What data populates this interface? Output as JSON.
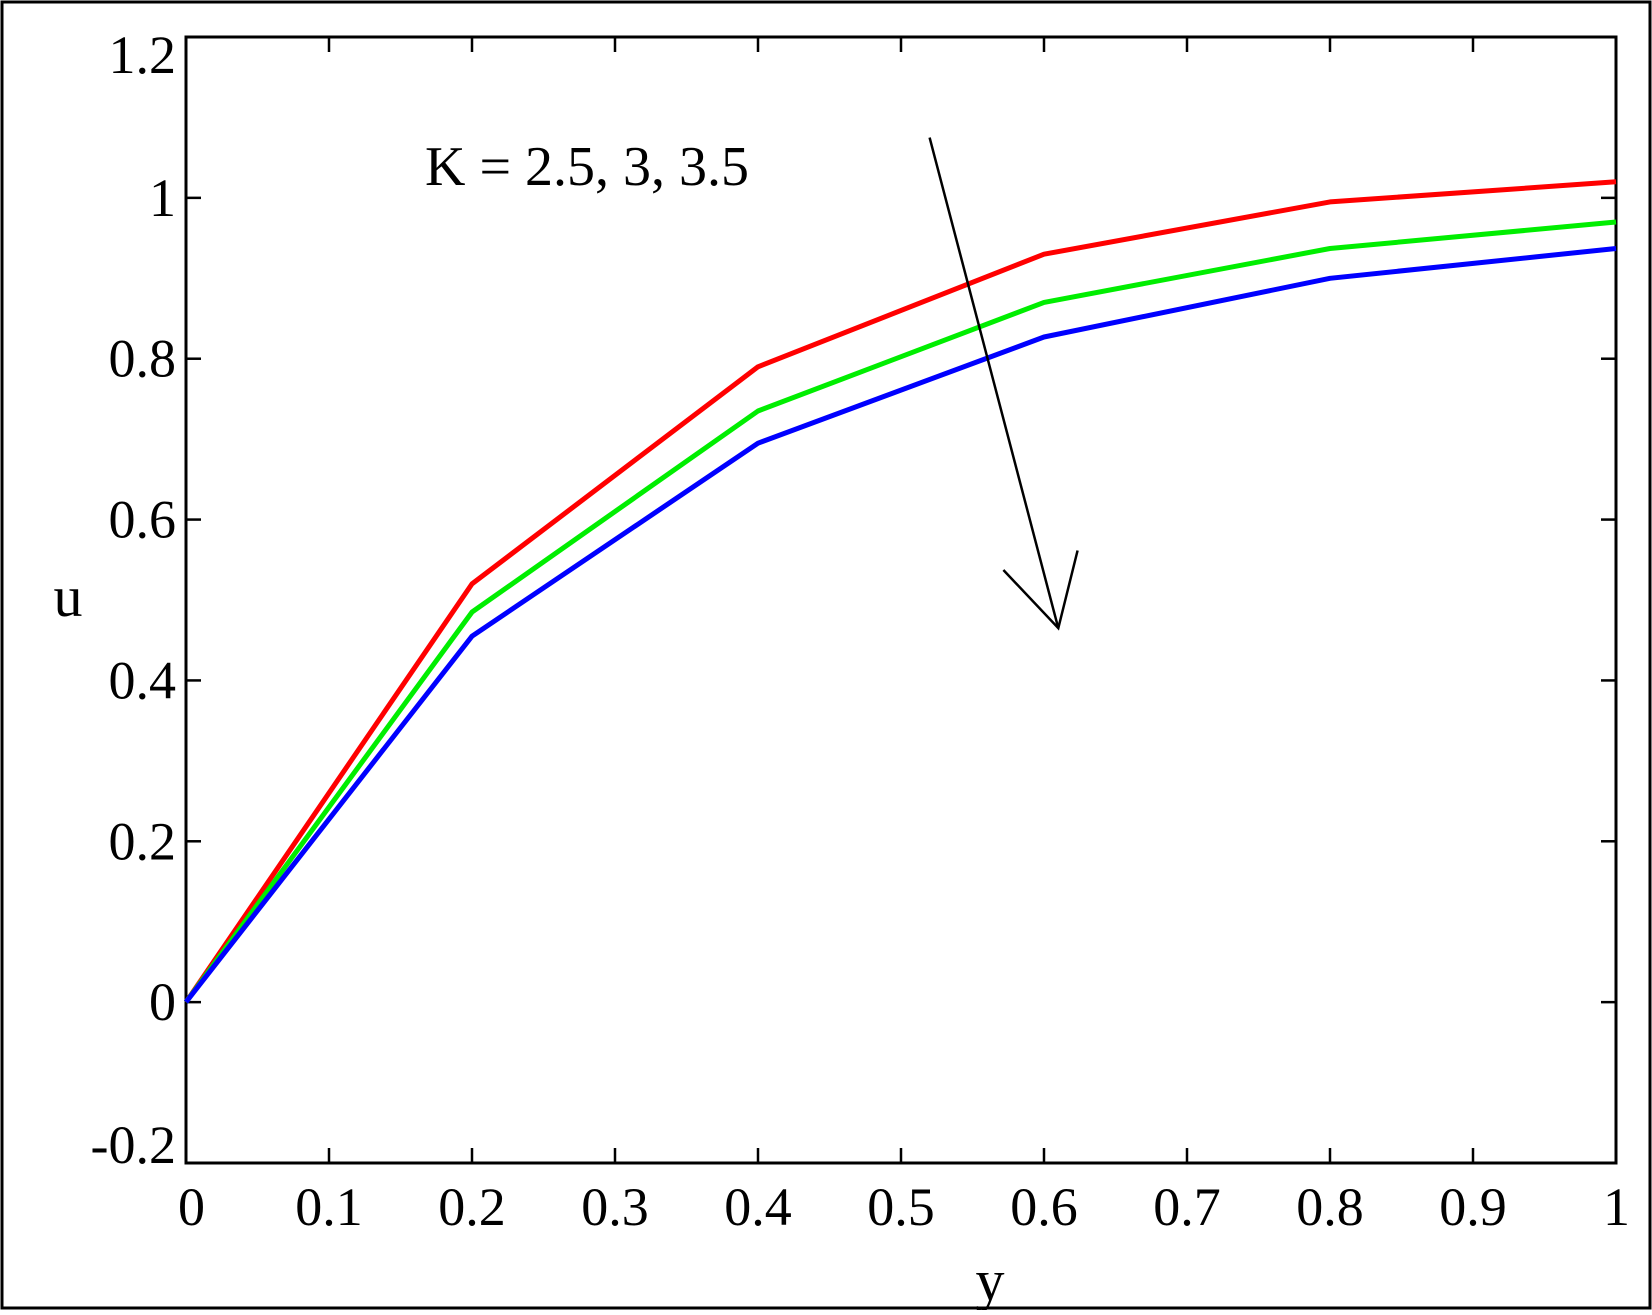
{
  "chart_data": {
    "type": "line",
    "title": "",
    "xlabel": "y",
    "ylabel": "u",
    "xlim": [
      0,
      1
    ],
    "ylim": [
      -0.2,
      1.2
    ],
    "xticks": [
      "0",
      "0.1",
      "0.2",
      "0.3",
      "0.4",
      "0.5",
      "0.6",
      "0.7",
      "0.8",
      "0.9",
      "1"
    ],
    "xtick_values": [
      0,
      0.1,
      0.2,
      0.3,
      0.4,
      0.5,
      0.6,
      0.7,
      0.8,
      0.9,
      1
    ],
    "yticks": [
      "-0.2",
      "0",
      "0.2",
      "0.4",
      "0.6",
      "0.8",
      "1",
      "1.2"
    ],
    "ytick_values": [
      -0.2,
      0,
      0.2,
      0.4,
      0.6,
      0.8,
      1,
      1.2
    ],
    "grid": false,
    "legend": "none",
    "x": [
      0,
      0.2,
      0.4,
      0.6,
      0.8,
      1.0
    ],
    "series": [
      {
        "color": "#ff0000",
        "values": [
          0,
          0.52,
          0.79,
          0.93,
          0.995,
          1.02
        ]
      },
      {
        "color": "#00ee00",
        "values": [
          0,
          0.485,
          0.735,
          0.87,
          0.937,
          0.97
        ]
      },
      {
        "color": "#0000ff",
        "values": [
          0,
          0.455,
          0.695,
          0.827,
          0.9,
          0.937
        ]
      }
    ],
    "annotation": {
      "text": "K = 2.5, 3, 3.5",
      "arrow_from": [
        0.52,
        1.075
      ],
      "arrow_to": [
        0.61,
        0.465
      ],
      "arrow_color": "#000000"
    }
  }
}
